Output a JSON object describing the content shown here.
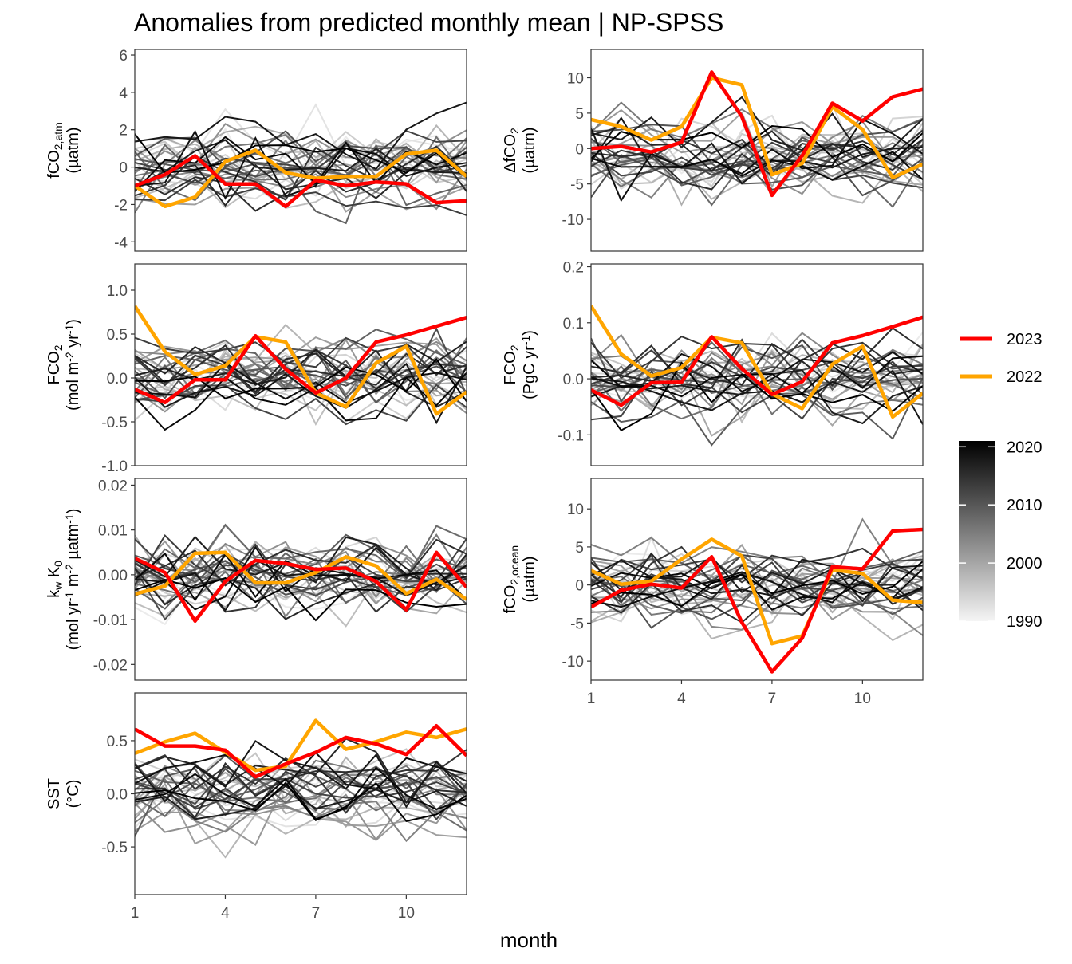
{
  "chart_data": {
    "title": "Anomalies from predicted monthly mean | NP-SPSS",
    "xlabel": "month",
    "type": "line",
    "x_ticks": [
      1,
      4,
      7,
      10
    ],
    "xlim": [
      1,
      12
    ],
    "legend": {
      "placement": "right",
      "highlight": [
        {
          "name": "2023",
          "color": "#ff0000"
        },
        {
          "name": "2022",
          "color": "#ffa500"
        }
      ],
      "gradient": {
        "min": 1990,
        "max": 2021,
        "ticks": [
          2020,
          2010,
          2000,
          1990
        ],
        "low_color": "#f5f5f5",
        "high_color": "#000000"
      }
    },
    "panels": [
      {
        "id": "fco2atm",
        "ylabel_lines": [
          {
            "main": "fCO",
            "sub": "2,atm"
          },
          {
            "main": "(µatm)"
          }
        ],
        "ylim": [
          -4.5,
          6.3
        ],
        "y_ticks": [
          -4,
          -2,
          0,
          2,
          4,
          6
        ],
        "y_tick_labels": [
          "-4",
          "-2",
          "0",
          "2",
          "4",
          "6"
        ],
        "show_x_ticks": false,
        "series_2023": [
          -1.0,
          -0.4,
          0.6,
          -0.9,
          -0.9,
          -2.1,
          -0.7,
          -1.0,
          -0.8,
          -0.9,
          -1.9,
          -1.8
        ],
        "series_2022": [
          -1.0,
          -2.1,
          -1.6,
          0.3,
          0.9,
          -0.3,
          -0.6,
          -0.5,
          -0.5,
          0.7,
          0.9,
          -0.5
        ]
      },
      {
        "id": "dfco2",
        "ylabel_lines": [
          {
            "main": "ΔfCO",
            "sub": "2"
          },
          {
            "main": "(µatm)"
          }
        ],
        "ylim": [
          -14.5,
          14.0
        ],
        "y_ticks": [
          -10,
          -5,
          0,
          5,
          10
        ],
        "y_tick_labels": [
          "-10",
          "-5",
          "0",
          "5",
          "10"
        ],
        "show_x_ticks": false,
        "series_2023": [
          0.0,
          0.3,
          -0.5,
          0.9,
          10.8,
          4.5,
          -6.6,
          -1.0,
          6.4,
          3.9,
          7.3,
          8.4
        ],
        "series_2022": [
          4.1,
          3.1,
          1.2,
          3.1,
          10.0,
          9.0,
          -3.7,
          -2.1,
          5.9,
          2.7,
          -4.1,
          -2.2
        ]
      },
      {
        "id": "fco2flux_area",
        "ylabel_lines": [
          {
            "main": "FCO",
            "sub": "2"
          },
          {
            "main": "(mol m",
            "sup": "-2",
            "rest": " yr",
            "sup2": "-1",
            "end": ")"
          }
        ],
        "ylim": [
          -1.0,
          1.3
        ],
        "y_ticks": [
          -1.0,
          -0.5,
          0.0,
          0.5,
          1.0
        ],
        "y_tick_labels": [
          "-1.0",
          "-0.5",
          "0.0",
          "0.5",
          "1.0"
        ],
        "show_x_ticks": false,
        "series_2023": [
          -0.13,
          -0.28,
          -0.02,
          -0.02,
          0.48,
          0.1,
          -0.17,
          0.0,
          0.41,
          0.49,
          0.59,
          0.69
        ],
        "series_2022": [
          0.82,
          0.3,
          0.04,
          0.14,
          0.47,
          0.41,
          -0.17,
          -0.33,
          0.17,
          0.36,
          -0.41,
          -0.16
        ]
      },
      {
        "id": "fco2flux_total",
        "ylabel_lines": [
          {
            "main": "FCO",
            "sub": "2"
          },
          {
            "main": "(PgC yr",
            "sup": "-1",
            "end": ")"
          }
        ],
        "ylim": [
          -0.155,
          0.205
        ],
        "y_ticks": [
          -0.1,
          0.0,
          0.1,
          0.2
        ],
        "y_tick_labels": [
          "-0.1",
          "0.0",
          "0.1",
          "0.2"
        ],
        "show_x_ticks": false,
        "series_2023": [
          -0.02,
          -0.047,
          -0.007,
          -0.006,
          0.075,
          0.018,
          -0.028,
          -0.005,
          0.064,
          0.077,
          0.093,
          0.11
        ],
        "series_2022": [
          0.13,
          0.044,
          0.005,
          0.02,
          0.074,
          0.064,
          -0.027,
          -0.053,
          0.026,
          0.058,
          -0.068,
          -0.026
        ]
      },
      {
        "id": "kwk0",
        "ylabel_lines": [
          {
            "main": "k",
            "sub": "w",
            "mid": " K",
            "sub2": "0"
          },
          {
            "main": "(mol yr",
            "sup": "-1",
            "rest": " m",
            "sup2": "-2",
            "rest2": " µatm",
            "sup3": "-1",
            "end": ")"
          }
        ],
        "ylim": [
          -0.0235,
          0.0215
        ],
        "y_ticks": [
          -0.02,
          -0.01,
          0.0,
          0.01,
          0.02
        ],
        "y_tick_labels": [
          "-0.02",
          "-0.01",
          "0.00",
          "0.01",
          "0.02"
        ],
        "show_x_ticks": false,
        "series_2023": [
          0.0037,
          0.0005,
          -0.0103,
          -0.0015,
          0.0032,
          0.0025,
          0.0012,
          0.0015,
          -0.0015,
          -0.0078,
          0.005,
          -0.0028
        ],
        "series_2022": [
          -0.0043,
          -0.0025,
          0.0048,
          0.005,
          -0.0018,
          -0.0018,
          0.0005,
          0.004,
          0.002,
          -0.0042,
          -0.001,
          -0.0055
        ]
      },
      {
        "id": "fco2ocean",
        "ylabel_lines": [
          {
            "main": "fCO",
            "sub": "2,ocean"
          },
          {
            "main": "(µatm)"
          }
        ],
        "ylim": [
          -12.5,
          14.0
        ],
        "y_ticks": [
          -10,
          -5,
          0,
          5,
          10
        ],
        "y_tick_labels": [
          "-10",
          "-5",
          "0",
          "5",
          "10"
        ],
        "show_x_ticks": true,
        "series_2023": [
          -2.9,
          -0.7,
          0.1,
          -0.4,
          3.7,
          -4.9,
          -11.4,
          -7.0,
          2.4,
          2.1,
          7.1,
          7.3
        ],
        "series_2022": [
          1.9,
          0.1,
          0.5,
          3.4,
          6.0,
          3.8,
          -7.7,
          -6.7,
          2.0,
          1.5,
          -2.0,
          -2.3
        ]
      },
      {
        "id": "sst",
        "ylabel_lines": [
          {
            "main": "SST"
          },
          {
            "main": "(°C)"
          }
        ],
        "ylim": [
          -0.95,
          0.95
        ],
        "y_ticks": [
          -0.5,
          0.0,
          0.5
        ],
        "y_tick_labels": [
          "-0.5",
          "0.0",
          "0.5"
        ],
        "show_x_ticks": true,
        "series_2023": [
          0.61,
          0.45,
          0.45,
          0.41,
          0.16,
          0.28,
          0.39,
          0.53,
          0.47,
          0.37,
          0.64,
          0.36
        ],
        "series_2022": [
          0.38,
          0.49,
          0.57,
          0.39,
          0.22,
          0.26,
          0.69,
          0.42,
          0.49,
          0.58,
          0.53,
          0.61
        ]
      }
    ]
  }
}
